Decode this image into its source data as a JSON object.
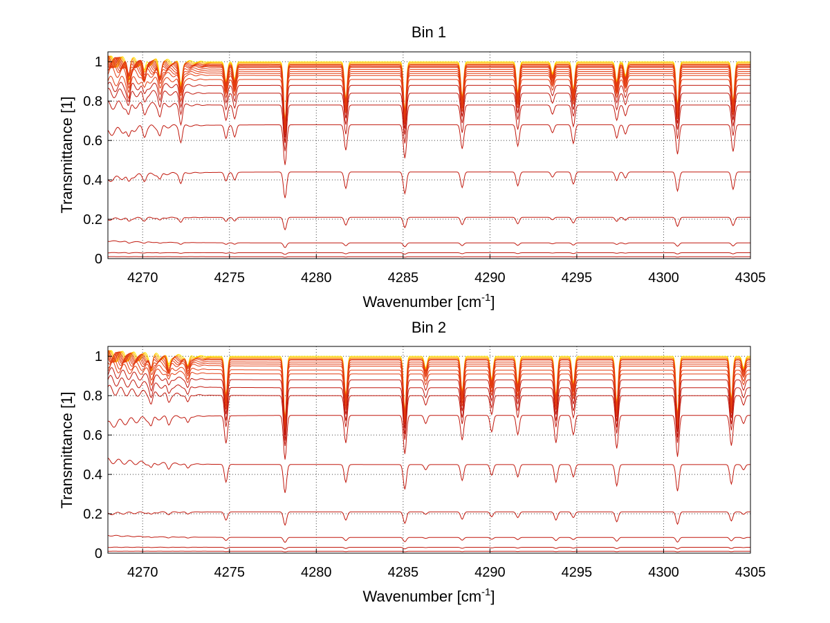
{
  "chart_data": [
    {
      "type": "line",
      "title": "Bin 1",
      "xlabel": "Wavenumber [cm",
      "xlabel_sup": "-1",
      "xlabel_end": "]",
      "ylabel": "Transmittance [1]",
      "xlim": [
        4268,
        4305
      ],
      "ylim": [
        0,
        1.05
      ],
      "xticks": [
        4270,
        4275,
        4280,
        4285,
        4290,
        4295,
        4300,
        4305
      ],
      "yticks": [
        0,
        0.2,
        0.4,
        0.6,
        0.8,
        1
      ],
      "ytick_labels": [
        "0",
        "0.2",
        "0.4",
        "0.6",
        "0.8",
        "1"
      ],
      "grid": true,
      "levels": [
        1.0,
        0.995,
        0.99,
        0.985,
        0.98,
        0.975,
        0.97,
        0.96,
        0.95,
        0.94,
        0.93,
        0.91,
        0.88,
        0.84,
        0.78,
        0.68,
        0.44,
        0.21,
        0.08,
        0.03,
        0.01
      ],
      "start_levels": [
        1.0,
        1.0,
        1.0,
        1.0,
        1.0,
        1.0,
        1.0,
        1.0,
        0.99,
        0.98,
        0.95,
        0.9,
        0.87,
        0.84,
        0.78,
        0.64,
        0.4,
        0.2,
        0.09,
        0.03,
        0.01
      ],
      "absorption_lines": [
        {
          "x": 4269.2,
          "depth": 0.08
        },
        {
          "x": 4270.1,
          "depth": 0.06
        },
        {
          "x": 4271.0,
          "depth": 0.07
        },
        {
          "x": 4272.2,
          "depth": 0.12
        },
        {
          "x": 4274.8,
          "depth": 0.1
        },
        {
          "x": 4275.3,
          "depth": 0.09
        },
        {
          "x": 4278.2,
          "depth": 0.3
        },
        {
          "x": 4281.7,
          "depth": 0.19
        },
        {
          "x": 4285.1,
          "depth": 0.25
        },
        {
          "x": 4288.4,
          "depth": 0.18
        },
        {
          "x": 4291.6,
          "depth": 0.16
        },
        {
          "x": 4293.6,
          "depth": 0.06
        },
        {
          "x": 4294.8,
          "depth": 0.14
        },
        {
          "x": 4297.3,
          "depth": 0.1
        },
        {
          "x": 4297.8,
          "depth": 0.07
        },
        {
          "x": 4300.8,
          "depth": 0.22
        },
        {
          "x": 4304.0,
          "depth": 0.2
        }
      ]
    },
    {
      "type": "line",
      "title": "Bin 2",
      "xlabel": "Wavenumber [cm",
      "xlabel_sup": "-1",
      "xlabel_end": "]",
      "ylabel": "Transmittance [1]",
      "xlim": [
        4268,
        4305
      ],
      "ylim": [
        0,
        1.05
      ],
      "xticks": [
        4270,
        4275,
        4280,
        4285,
        4290,
        4295,
        4300,
        4305
      ],
      "yticks": [
        0,
        0.2,
        0.4,
        0.6,
        0.8,
        1
      ],
      "ytick_labels": [
        "0",
        "0.2",
        "0.4",
        "0.6",
        "0.8",
        "1"
      ],
      "grid": true,
      "levels": [
        1.0,
        0.995,
        0.99,
        0.985,
        0.98,
        0.97,
        0.96,
        0.95,
        0.93,
        0.91,
        0.88,
        0.84,
        0.8,
        0.7,
        0.45,
        0.21,
        0.08,
        0.03,
        0.01
      ],
      "start_levels": [
        1.0,
        1.0,
        1.0,
        1.0,
        1.0,
        1.0,
        1.0,
        0.99,
        0.97,
        0.95,
        0.92,
        0.88,
        0.83,
        0.65,
        0.47,
        0.2,
        0.09,
        0.03,
        0.01
      ],
      "absorption_lines": [
        {
          "x": 4270.5,
          "depth": 0.06
        },
        {
          "x": 4271.5,
          "depth": 0.05
        },
        {
          "x": 4272.6,
          "depth": 0.05
        },
        {
          "x": 4274.8,
          "depth": 0.2
        },
        {
          "x": 4278.2,
          "depth": 0.32
        },
        {
          "x": 4281.7,
          "depth": 0.2
        },
        {
          "x": 4285.1,
          "depth": 0.28
        },
        {
          "x": 4286.3,
          "depth": 0.06
        },
        {
          "x": 4288.4,
          "depth": 0.18
        },
        {
          "x": 4290.1,
          "depth": 0.12
        },
        {
          "x": 4291.6,
          "depth": 0.14
        },
        {
          "x": 4293.8,
          "depth": 0.2
        },
        {
          "x": 4294.8,
          "depth": 0.14
        },
        {
          "x": 4297.3,
          "depth": 0.24
        },
        {
          "x": 4300.8,
          "depth": 0.3
        },
        {
          "x": 4303.9,
          "depth": 0.22
        },
        {
          "x": 4304.6,
          "depth": 0.06
        }
      ]
    }
  ]
}
